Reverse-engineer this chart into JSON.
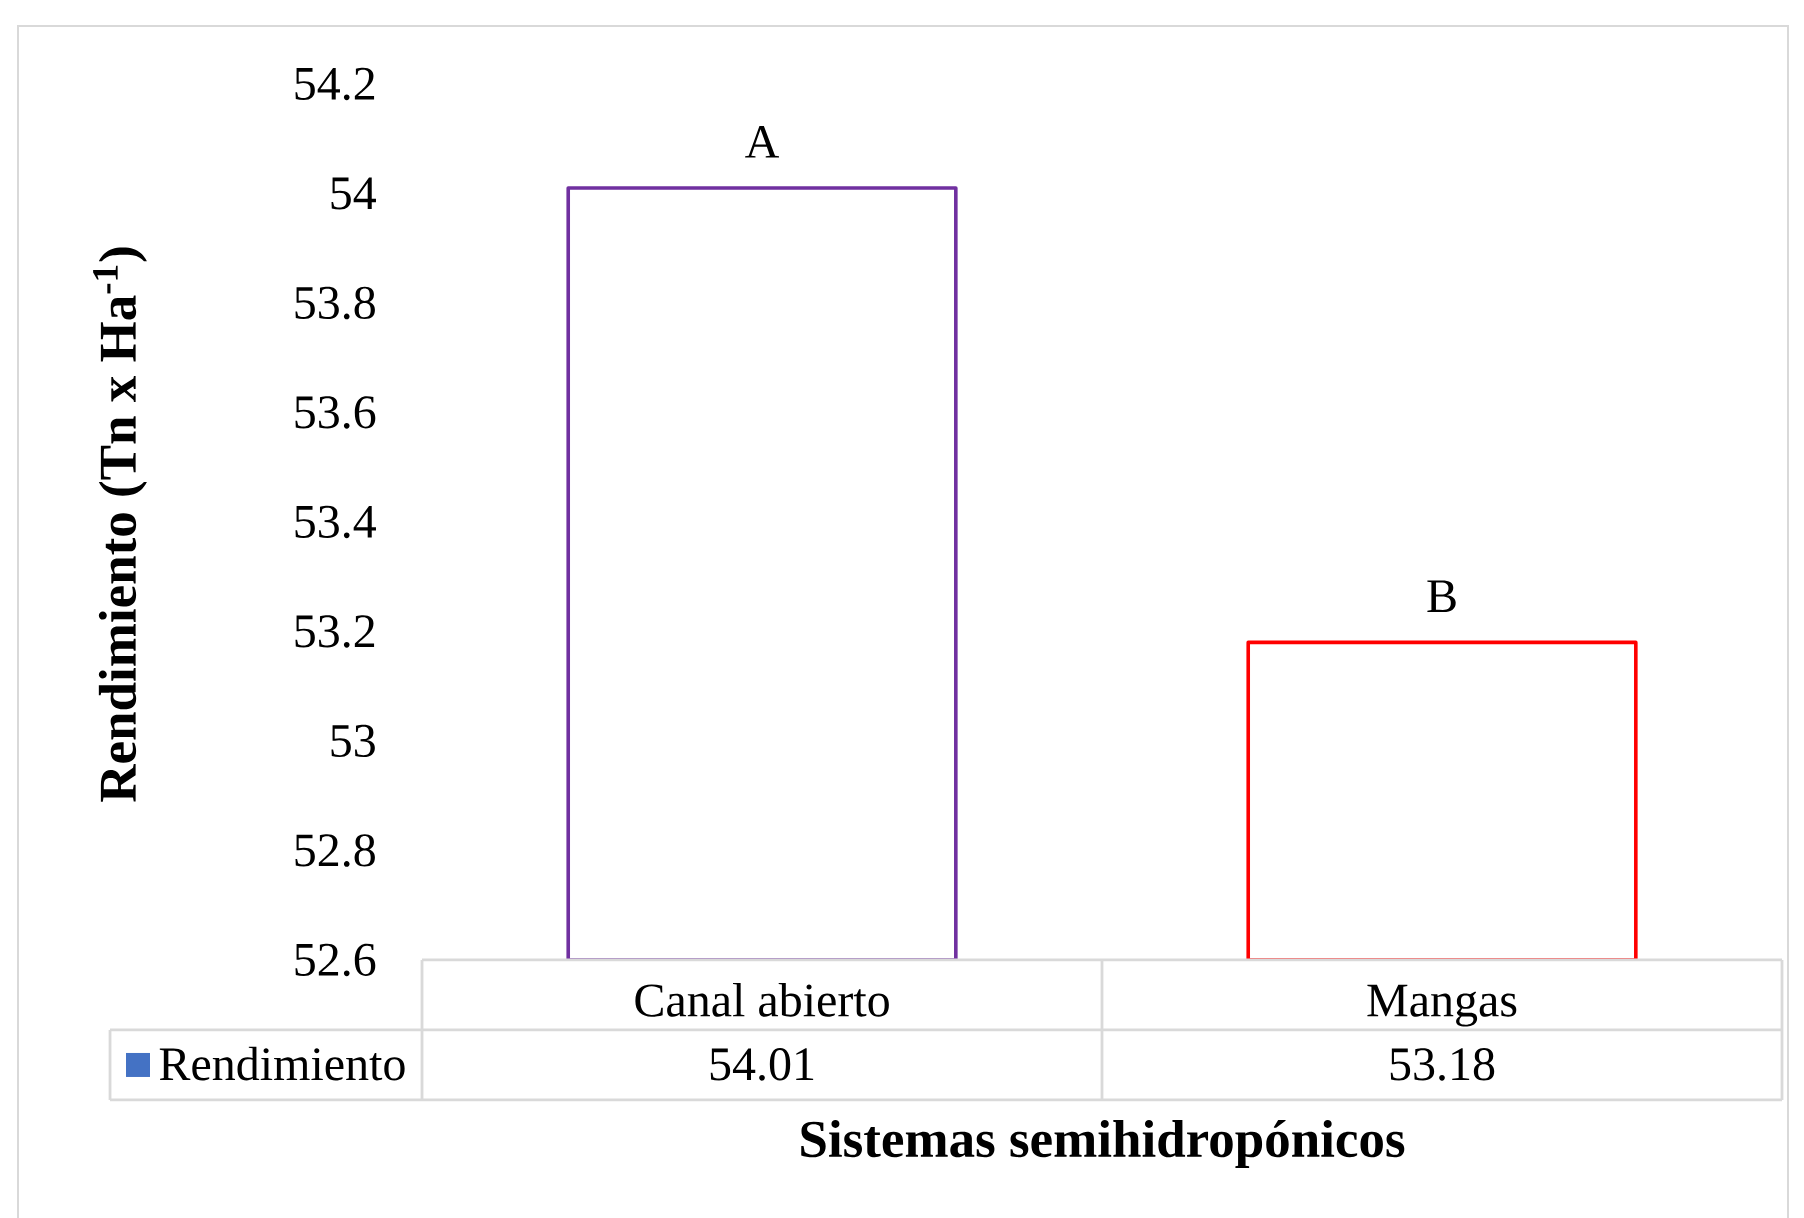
{
  "chart_data": {
    "type": "bar",
    "categories": [
      "Canal abierto",
      "Mangas"
    ],
    "series": [
      {
        "name": "Rendimiento",
        "color": "#4472c4",
        "colors": [
          "#7030a0",
          "#ff0000"
        ],
        "values": [
          54.01,
          53.18
        ]
      }
    ],
    "xlabel": "Sistemas semihidropónicos",
    "ylabel": "Rendimiento (Tn x Ha$^{-1}$)",
    "ylim": [
      52.6,
      54.2
    ],
    "yticks": [
      52.6,
      52.8,
      53,
      53.2,
      53.4,
      53.6,
      53.8,
      54,
      54.2
    ],
    "data_labels": true,
    "legend": "bottom",
    "annotations": [
      {
        "text": "A",
        "x": "Canal abierto",
        "y": 54.01
      },
      {
        "text": "B",
        "x": "Mangas",
        "y": 53.18
      }
    ]
  }
}
